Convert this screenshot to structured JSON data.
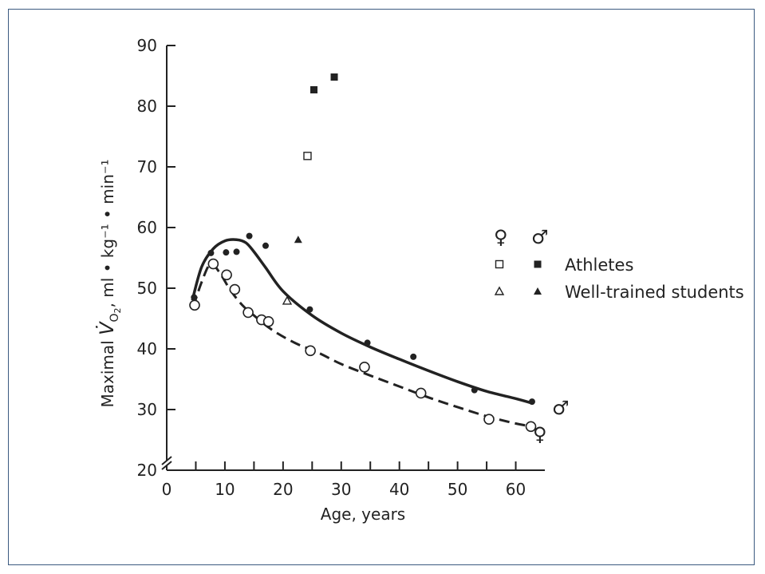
{
  "chart_data": {
    "type": "scatter",
    "xlabel": "Age, years",
    "ylabel_prefix": "Maximal",
    "ylabel_symbol": "V̇",
    "ylabel_subscript": "O",
    "ylabel_subscript2": "2",
    "ylabel_units": ", ml • kg⁻¹ • min⁻¹",
    "xlim": [
      0,
      65
    ],
    "ylim": [
      20,
      90
    ],
    "x_ticks": [
      0,
      10,
      20,
      30,
      40,
      50,
      60
    ],
    "y_ticks": [
      20,
      30,
      40,
      50,
      60,
      70,
      80,
      90
    ],
    "legend": {
      "placement": "right",
      "female_symbol": "♀",
      "male_symbol": "♂",
      "entries": [
        {
          "label": "Athletes",
          "female_marker": "open-square",
          "male_marker": "filled-square"
        },
        {
          "label": "Well-trained students",
          "female_marker": "open-triangle",
          "male_marker": "filled-triangle"
        }
      ]
    },
    "curve_labels": {
      "male": "♂",
      "female": "♀"
    },
    "series": [
      {
        "name": "♂",
        "marker": "filled-circle",
        "curve": "solid",
        "points": [
          [
            4.7,
            48.5
          ],
          [
            7.6,
            55.8
          ],
          [
            10.2,
            55.9
          ],
          [
            12,
            56
          ],
          [
            14.2,
            58.6
          ],
          [
            17,
            57
          ],
          [
            24.6,
            46.5
          ],
          [
            34.5,
            41
          ],
          [
            42.4,
            38.7
          ],
          [
            52.9,
            33.2
          ],
          [
            62.8,
            31.3
          ]
        ],
        "fit": [
          [
            4.4,
            48
          ],
          [
            6,
            53.5
          ],
          [
            8,
            56.5
          ],
          [
            10,
            57.8
          ],
          [
            12,
            58
          ],
          [
            13.6,
            57.5
          ],
          [
            15,
            56
          ],
          [
            17,
            53.4
          ],
          [
            20,
            49.5
          ],
          [
            25,
            45.5
          ],
          [
            30,
            42.6
          ],
          [
            35,
            40.3
          ],
          [
            40,
            38.3
          ],
          [
            45,
            36.4
          ],
          [
            50,
            34.6
          ],
          [
            55,
            33
          ],
          [
            60,
            31.8
          ],
          [
            63,
            31
          ]
        ]
      },
      {
        "name": "♀",
        "marker": "open-circle",
        "curve": "dashed",
        "points": [
          [
            4.8,
            47.2
          ],
          [
            8,
            54
          ],
          [
            10.3,
            52.2
          ],
          [
            11.7,
            49.8
          ],
          [
            14,
            46
          ],
          [
            16.3,
            44.8
          ],
          [
            17.5,
            44.5
          ],
          [
            24.7,
            39.7
          ],
          [
            34,
            37
          ],
          [
            43.7,
            32.7
          ],
          [
            55.4,
            28.4
          ],
          [
            62.6,
            27.2
          ]
        ],
        "fit": [
          [
            4.6,
            47
          ],
          [
            6,
            51
          ],
          [
            7.5,
            54
          ],
          [
            9,
            52.7
          ],
          [
            11,
            49.6
          ],
          [
            13,
            47.2
          ],
          [
            15,
            45.5
          ],
          [
            18,
            43.2
          ],
          [
            22,
            41
          ],
          [
            26,
            39.4
          ],
          [
            30,
            37.5
          ],
          [
            35,
            35.6
          ],
          [
            40,
            33.8
          ],
          [
            45,
            32
          ],
          [
            50,
            30.4
          ],
          [
            55,
            28.9
          ],
          [
            60,
            27.7
          ],
          [
            63,
            27.2
          ]
        ]
      },
      {
        "name": "Athletes ♀",
        "marker": "open-square",
        "points": [
          [
            24.2,
            71.8
          ]
        ]
      },
      {
        "name": "Athletes ♂",
        "marker": "filled-square",
        "points": [
          [
            25.3,
            82.7
          ],
          [
            28.8,
            84.8
          ]
        ]
      },
      {
        "name": "Well-trained students ♀",
        "marker": "open-triangle",
        "points": [
          [
            20.7,
            47.9
          ]
        ]
      },
      {
        "name": "Well-trained students ♂",
        "marker": "filled-triangle",
        "points": [
          [
            22.6,
            58
          ]
        ]
      }
    ]
  }
}
